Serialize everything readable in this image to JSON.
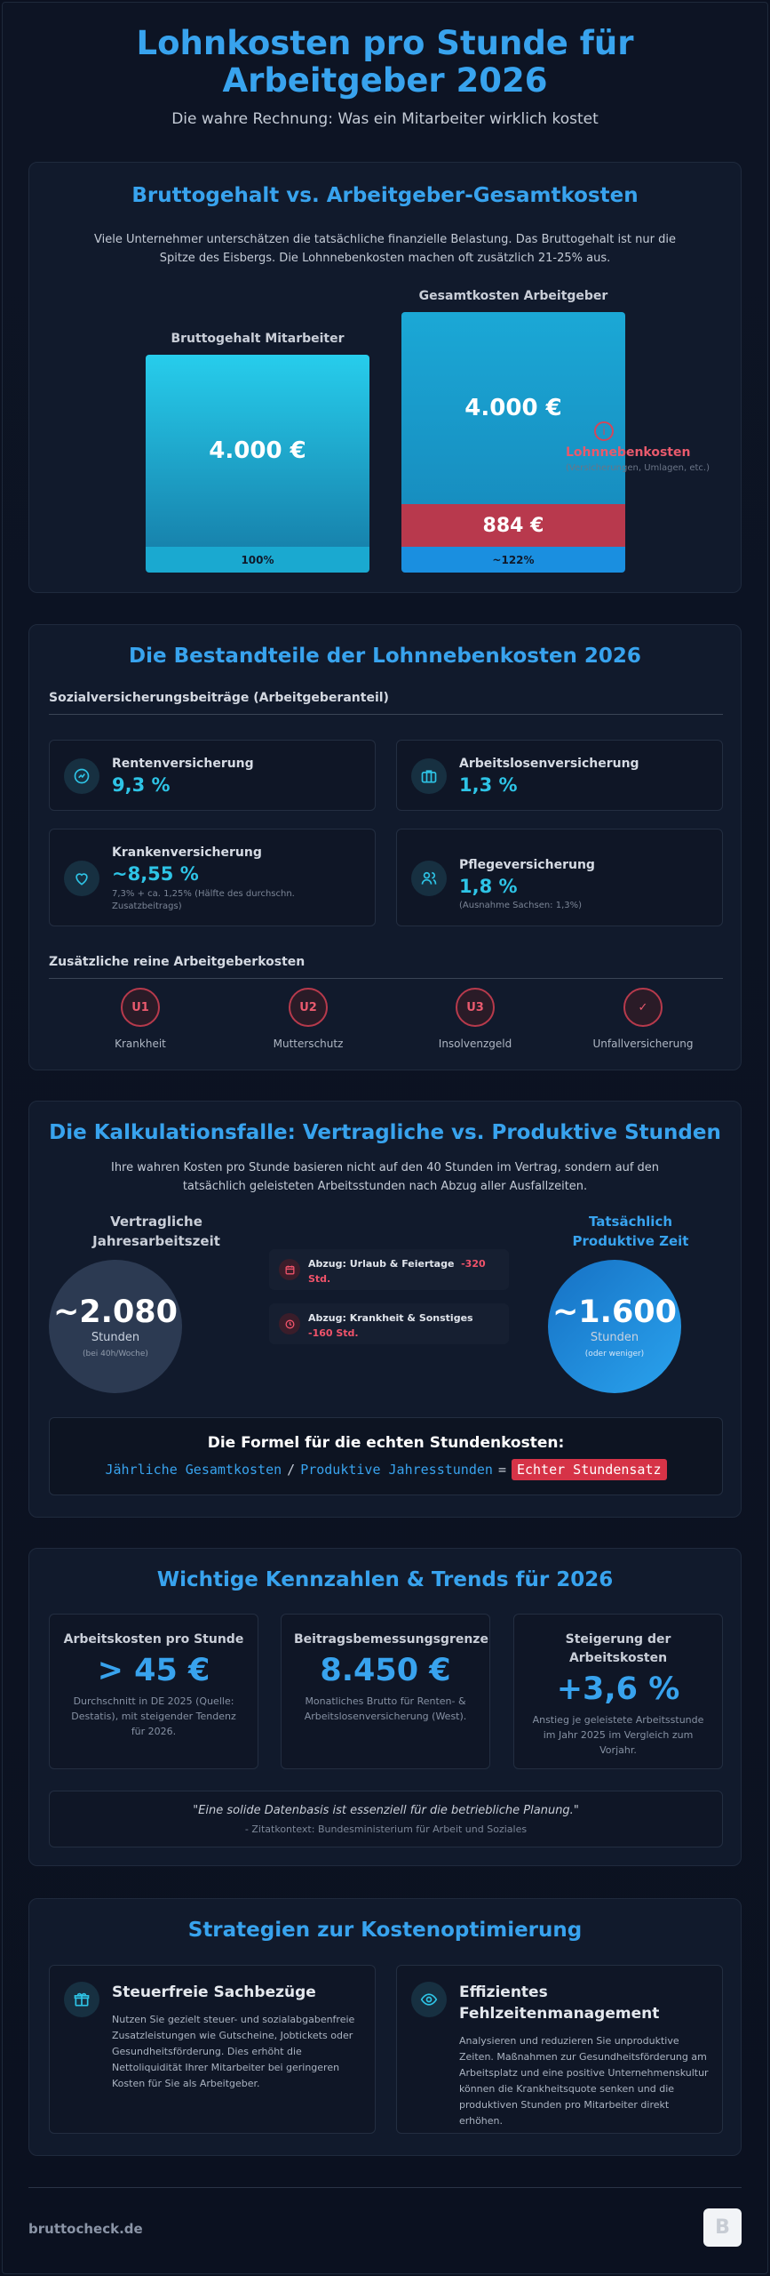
{
  "header": {
    "title": "Lohnkosten pro Stunde für Arbeitgeber 2026",
    "subtitle": "Die wahre Rechnung: Was ein Mitarbeiter wirklich kostet"
  },
  "comparison": {
    "title": "Bruttogehalt vs. Arbeitgeber-Gesamtkosten",
    "intro": "Viele Unternehmer unterschätzen die tatsächliche finanzielle Belastung. Das Bruttogehalt ist nur die Spitze des Eisbergs. Die Lohnnebenkosten machen oft zusätzlich 21-25% aus.",
    "left_label": "Bruttogehalt Mitarbeiter",
    "left_value": "4.000 €",
    "left_percent": "100%",
    "right_label": "Gesamtkosten Arbeitgeber",
    "right_value": "4.000 €",
    "right_extra_value": "884 €",
    "right_percent": "~122%",
    "side_marker": "i",
    "side_label": "Lohnnebenkosten",
    "side_sub": "(Versicherungen, Umlagen, etc.)",
    "colors": {
      "brutto": "#22c3e6",
      "extra": "#b8394d",
      "total_foot": "#1a8fe0"
    }
  },
  "components": {
    "title": "Die Bestandteile der Lohnnebenkosten 2026",
    "social_heading": "Sozialversicherungsbeiträge (Arbeitgeberanteil)",
    "insurances": [
      {
        "icon": "pension-icon",
        "name": "Rentenversicherung",
        "value": "9,3 %",
        "note": ""
      },
      {
        "icon": "briefcase-icon",
        "name": "Arbeitslosenversicherung",
        "value": "1,3 %",
        "note": ""
      },
      {
        "icon": "heart-icon",
        "name": "Krankenversicherung",
        "value": "~8,55 %",
        "note": "7,3% + ca. 1,25% (Hälfte des durchschn. Zusatzbeitrags)"
      },
      {
        "icon": "people-icon",
        "name": "Pflegeversicherung",
        "value": "1,8 %",
        "note": "(Ausnahme Sachsen: 1,3%)"
      }
    ],
    "employer_heading": "Zusätzliche reine Arbeitgeberkosten",
    "employer_items": [
      {
        "badge": "U1",
        "label": "Krankheit"
      },
      {
        "badge": "U2",
        "label": "Mutterschutz"
      },
      {
        "badge": "U3",
        "label": "Insolvenzgeld"
      },
      {
        "badge": "✓",
        "label": "Unfallversicherung"
      }
    ]
  },
  "calc": {
    "title": "Die Kalkulationsfalle: Vertragliche vs. Produktive Stunden",
    "intro": "Ihre wahren Kosten pro Stunde basieren nicht auf den 40 Stunden im Vertrag, sondern auf den tatsächlich geleisteten Arbeitsstunden nach Abzug aller Ausfallzeiten.",
    "left_heading": "Vertragliche Jahresarbeitszeit",
    "left_value": "~2.080",
    "left_unit": "Stunden",
    "left_note": "(bei 40h/Woche)",
    "right_heading": "Tatsächlich Produktive Zeit",
    "right_value": "~1.600",
    "right_unit": "Stunden",
    "right_note": "(oder weniger)",
    "deductions": [
      {
        "icon": "calendar-icon",
        "text": "Abzug: Urlaub & Feiertage",
        "amount": "-320 Std."
      },
      {
        "icon": "clock-icon",
        "text": "Abzug: Krankheit & Sonstiges",
        "amount": "-160 Std."
      }
    ],
    "formula_title": "Die Formel für die echten Stundenkosten:",
    "formula_numerator": "Jährliche Gesamtkosten",
    "formula_div": "/",
    "formula_denominator": "Produktive Jahresstunden",
    "formula_eq": "=",
    "formula_result": "Echter Stundensatz"
  },
  "kpis": {
    "title": "Wichtige Kennzahlen & Trends für 2026",
    "items": [
      {
        "title": "Arbeitskosten pro Stunde",
        "value": "> 45 €",
        "desc": "Durchschnitt in DE 2025 (Quelle: Destatis), mit steigender Tendenz für 2026."
      },
      {
        "title": "Beitragsbemessungsgrenze",
        "value": "8.450 €",
        "desc": "Monatliches Brutto für Renten- & Arbeitslosenversicherung (West)."
      },
      {
        "title": "Steigerung der Arbeitskosten",
        "value": "+3,6 %",
        "desc": "Anstieg je geleistete Arbeitsstunde im Jahr 2025 im Vergleich zum Vorjahr."
      }
    ],
    "quote": "\"Eine solide Datenbasis ist essenziell für die betriebliche Planung.\"",
    "quote_source": "- Zitatkontext: Bundesministerium für Arbeit und Soziales"
  },
  "strategies": {
    "title": "Strategien zur Kostenoptimierung",
    "items": [
      {
        "icon": "gift-icon",
        "title": "Steuerfreie Sachbezüge",
        "desc": "Nutzen Sie gezielt steuer- und sozialabgabenfreie Zusatzleistungen wie Gutscheine, Jobtickets oder Gesundheitsförderung. Dies erhöht die Nettoliquidität Ihrer Mitarbeiter bei geringeren Kosten für Sie als Arbeitgeber."
      },
      {
        "icon": "eye-icon",
        "title": "Effizientes Fehlzeitenmanagement",
        "desc": "Analysieren und reduzieren Sie unproduktive Zeiten. Maßnahmen zur Gesundheitsförderung am Arbeitsplatz und eine positive Unternehmenskultur können die Krankheitsquote senken und die produktiven Stunden pro Mitarbeiter direkt erhöhen."
      }
    ]
  },
  "footer": {
    "brand": "bruttocheck.de",
    "logo_letter": "B"
  }
}
